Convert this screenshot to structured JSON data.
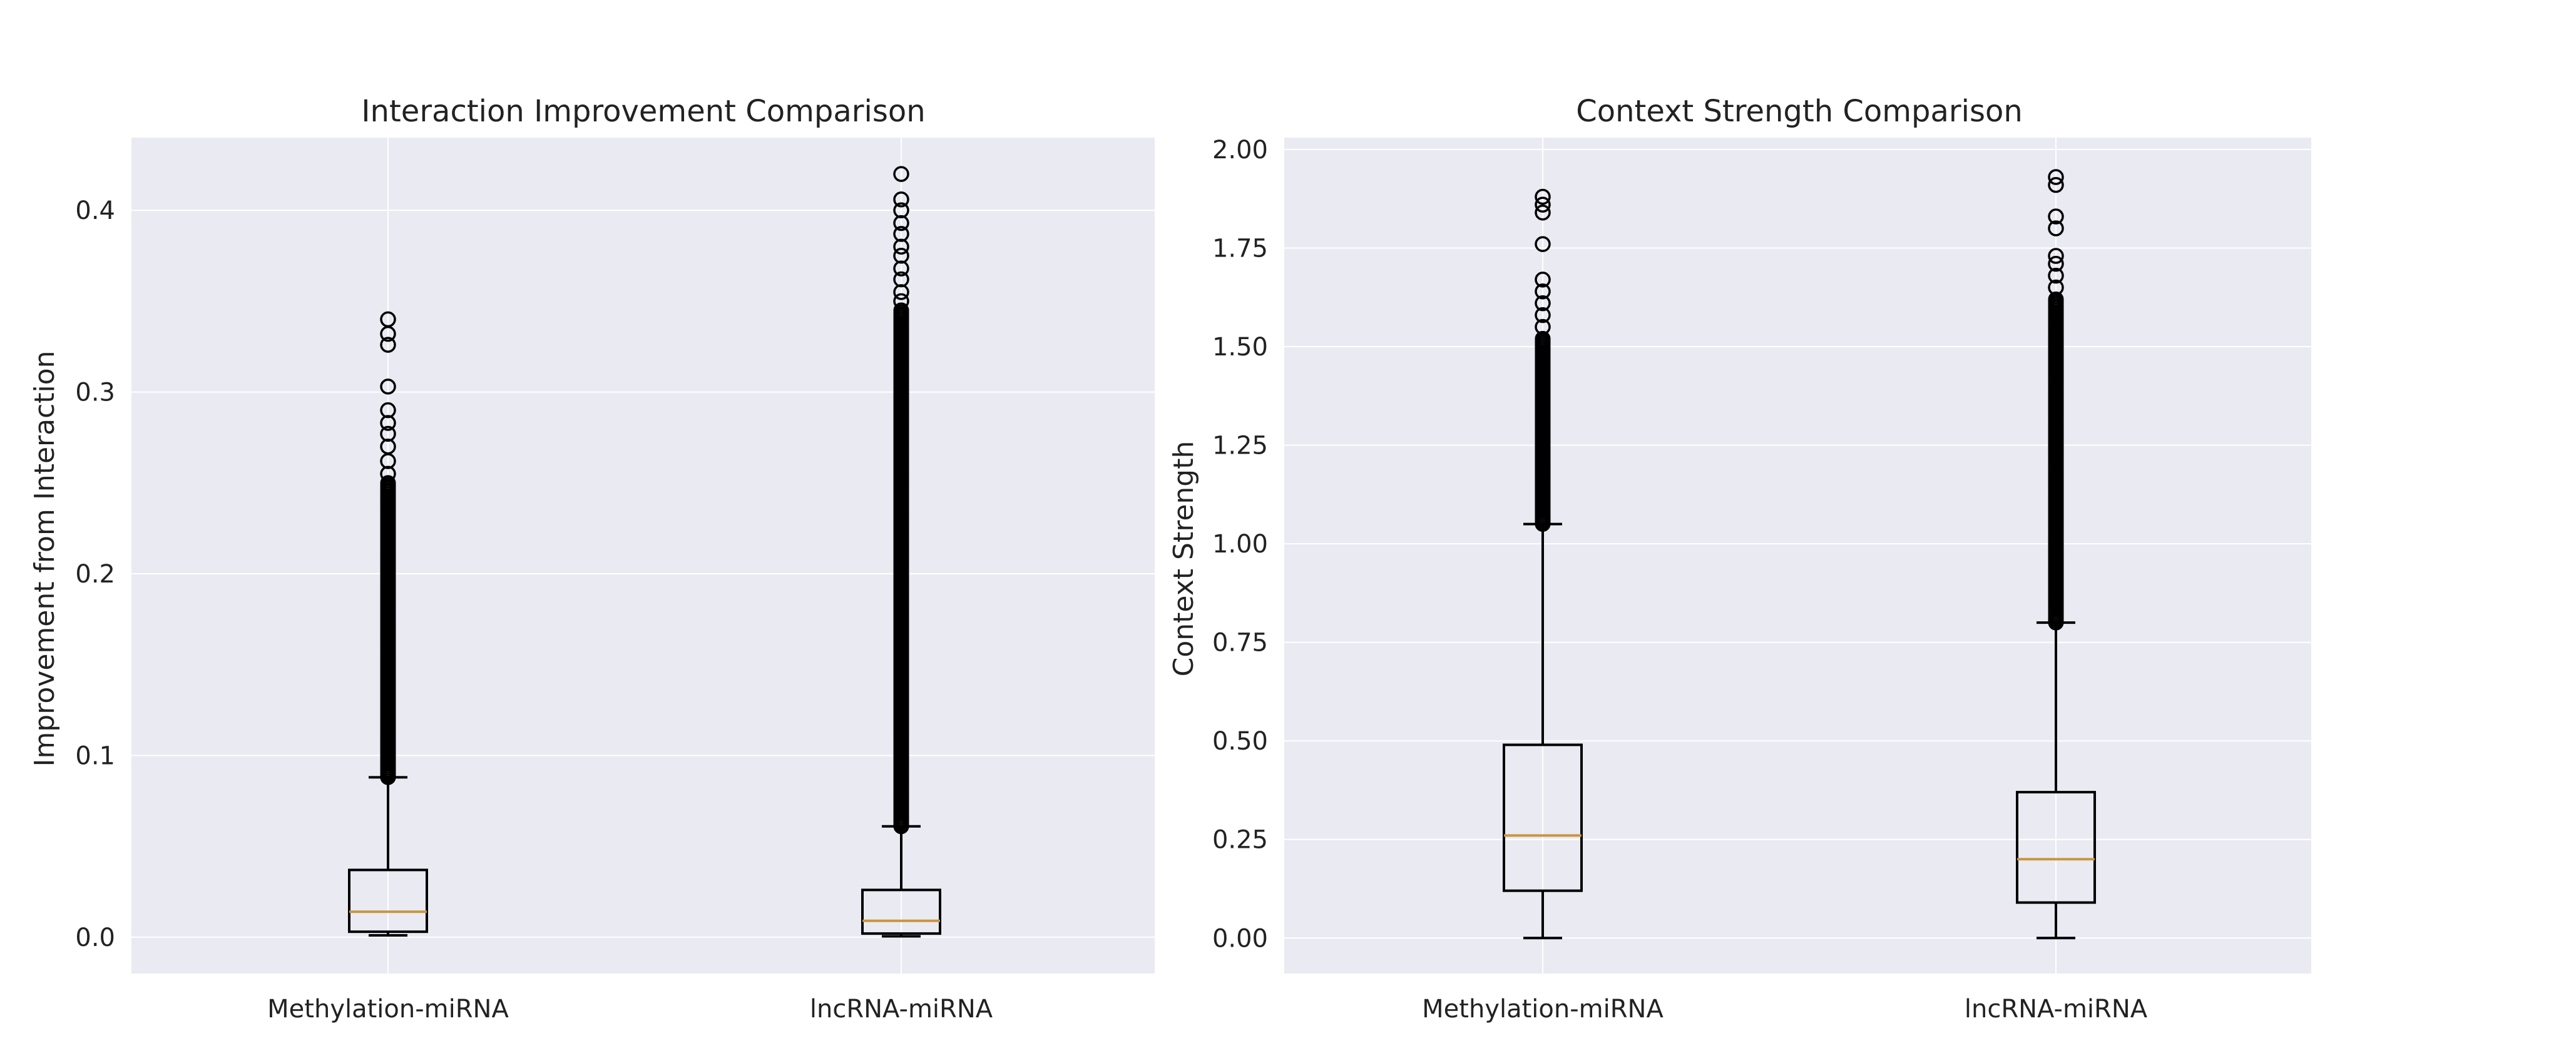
{
  "figure": {
    "background": "#ffffff",
    "plot_background": "#eaeaf2",
    "grid_color": "#ffffff",
    "box_color": "#000000",
    "median_color": "#c8963e"
  },
  "chart_data": [
    {
      "type": "box",
      "title": "Interaction Improvement Comparison",
      "xlabel": "",
      "ylabel": "Improvement from Interaction",
      "categories": [
        "Methylation-miRNA",
        "lncRNA-miRNA"
      ],
      "ylim": [
        -0.02,
        0.44
      ],
      "yticks": [
        0.0,
        0.1,
        0.2,
        0.3,
        0.4
      ],
      "ytick_labels": [
        "0.0",
        "0.1",
        "0.2",
        "0.3",
        "0.4"
      ],
      "grid": true,
      "boxes": [
        {
          "name": "Methylation-miRNA",
          "whisker_low": 0.001,
          "q1": 0.003,
          "median": 0.014,
          "q3": 0.037,
          "whisker_high": 0.088,
          "outlier_range": [
            0.088,
            0.25
          ],
          "outliers": [
            0.255,
            0.262,
            0.27,
            0.277,
            0.283,
            0.29,
            0.303,
            0.326,
            0.332,
            0.34
          ]
        },
        {
          "name": "lncRNA-miRNA",
          "whisker_low": 0.0005,
          "q1": 0.002,
          "median": 0.009,
          "q3": 0.026,
          "whisker_high": 0.061,
          "outlier_range": [
            0.061,
            0.345
          ],
          "outliers": [
            0.35,
            0.355,
            0.362,
            0.368,
            0.375,
            0.38,
            0.387,
            0.393,
            0.4,
            0.406,
            0.42
          ]
        }
      ]
    },
    {
      "type": "box",
      "title": "Context Strength Comparison",
      "xlabel": "",
      "ylabel": "Context Strength",
      "categories": [
        "Methylation-miRNA",
        "lncRNA-miRNA"
      ],
      "ylim": [
        -0.09,
        2.03
      ],
      "yticks": [
        0.0,
        0.25,
        0.5,
        0.75,
        1.0,
        1.25,
        1.5,
        1.75,
        2.0
      ],
      "ytick_labels": [
        "0.00",
        "0.25",
        "0.50",
        "0.75",
        "1.00",
        "1.25",
        "1.50",
        "1.75",
        "2.00"
      ],
      "grid": true,
      "boxes": [
        {
          "name": "Methylation-miRNA",
          "whisker_low": 0.0,
          "q1": 0.12,
          "median": 0.26,
          "q3": 0.49,
          "whisker_high": 1.05,
          "outlier_range": [
            1.05,
            1.52
          ],
          "outliers": [
            1.55,
            1.58,
            1.61,
            1.64,
            1.67,
            1.76,
            1.84,
            1.86,
            1.88
          ]
        },
        {
          "name": "lncRNA-miRNA",
          "whisker_low": 0.0,
          "q1": 0.09,
          "median": 0.2,
          "q3": 0.37,
          "whisker_high": 0.8,
          "outlier_range": [
            0.8,
            1.62
          ],
          "outliers": [
            1.65,
            1.68,
            1.71,
            1.73,
            1.8,
            1.83,
            1.91,
            1.93
          ]
        }
      ]
    }
  ]
}
